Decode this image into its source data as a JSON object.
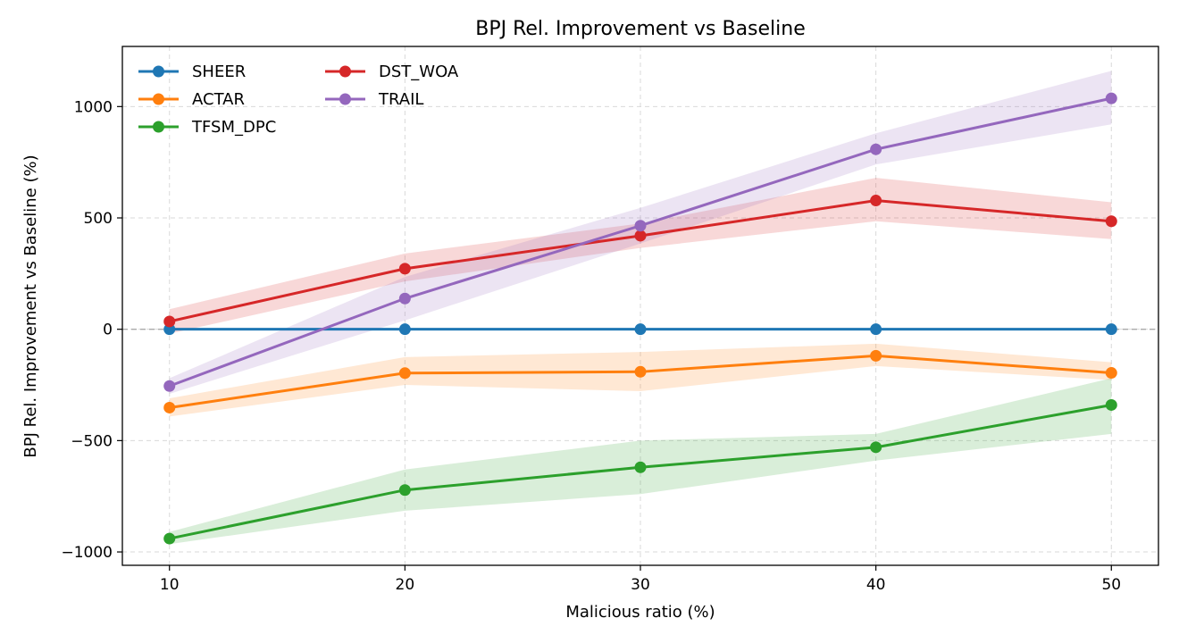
{
  "chart_data": {
    "type": "line",
    "title": "BPJ Rel. Improvement vs Baseline",
    "xlabel": "Malicious ratio (%)",
    "ylabel": "BPJ Rel. Improvement vs Baseline (%)",
    "x": [
      10,
      20,
      30,
      40,
      50
    ],
    "xticks": [
      10,
      20,
      30,
      40,
      50
    ],
    "yticks": [
      -1000,
      -500,
      0,
      500,
      1000
    ],
    "ytick_labels": [
      "−1000",
      "−500",
      "0",
      "500",
      "1000"
    ],
    "xlim": [
      8,
      52
    ],
    "ylim": [
      -1060,
      1270
    ],
    "grid": true,
    "legend_placement": "top-left",
    "reference_line": {
      "y": 0,
      "style": "dashed",
      "color": "#aaaaaa"
    },
    "series": [
      {
        "name": "SHEER",
        "color": "#1f77b4",
        "values": [
          0,
          0,
          0,
          0,
          0
        ],
        "lower": [
          0,
          0,
          0,
          0,
          0
        ],
        "upper": [
          0,
          0,
          0,
          0,
          0
        ]
      },
      {
        "name": "ACTAR",
        "color": "#ff7f0e",
        "values": [
          -352,
          -197,
          -191,
          -119,
          -196
        ],
        "lower": [
          -392,
          -250,
          -278,
          -165,
          -228
        ],
        "upper": [
          -310,
          -125,
          -102,
          -65,
          -148
        ]
      },
      {
        "name": "TFSM_DPC",
        "color": "#2ca02c",
        "values": [
          -940,
          -722,
          -620,
          -530,
          -340
        ],
        "lower": [
          -965,
          -815,
          -740,
          -590,
          -470
        ],
        "upper": [
          -910,
          -630,
          -500,
          -470,
          -220
        ]
      },
      {
        "name": "DST_WOA",
        "color": "#d62728",
        "values": [
          35,
          272,
          420,
          578,
          485
        ],
        "lower": [
          -20,
          215,
          365,
          485,
          405
        ],
        "upper": [
          90,
          340,
          475,
          680,
          570
        ]
      },
      {
        "name": "TRAIL",
        "color": "#9467bd",
        "values": [
          -255,
          138,
          465,
          808,
          1037
        ],
        "lower": [
          -290,
          40,
          385,
          740,
          920
        ],
        "upper": [
          -220,
          235,
          545,
          880,
          1160
        ]
      }
    ]
  }
}
